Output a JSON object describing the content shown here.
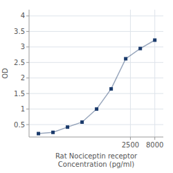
{
  "chart_data": {
    "type": "line",
    "x_label": "Rat Nociceptin receptor\nConcentration (pg/ml)",
    "y_label": "OD",
    "x": [
      31.25,
      62.5,
      125,
      250,
      500,
      1000,
      2000,
      4000,
      8000
    ],
    "values": [
      0.21,
      0.25,
      0.42,
      0.58,
      1.0,
      1.65,
      2.62,
      2.95,
      3.22
    ],
    "color": "#1a3a6b",
    "marker": "square",
    "log": "x",
    "grid": true,
    "xlim": [
      20,
      12000
    ],
    "ylim": [
      0.1,
      4.2
    ],
    "xticks": [
      2500,
      8000
    ],
    "yticks": [
      0.5,
      1,
      1.5,
      2,
      2.5,
      3,
      3.5,
      4
    ]
  }
}
